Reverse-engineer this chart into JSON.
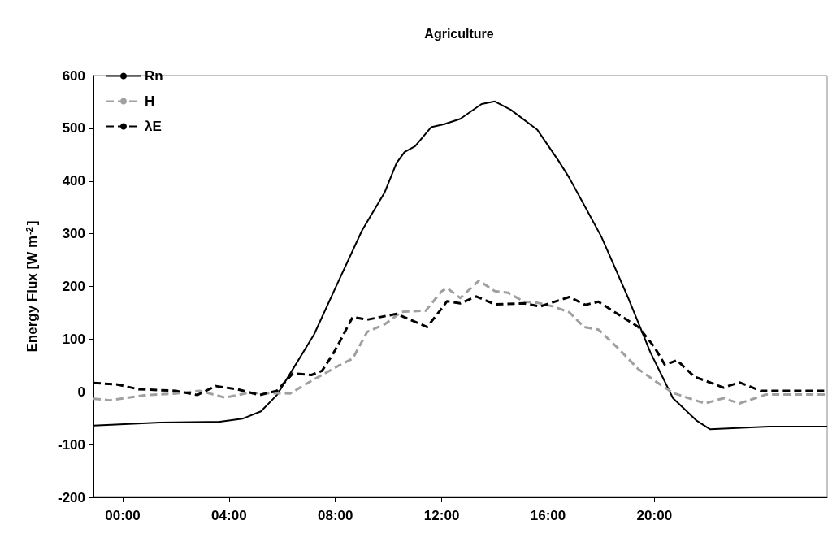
{
  "chart_data": {
    "type": "line",
    "title": "Agriculture",
    "ylabel": "Energy Flux [W m$^{-2}$]",
    "xlim": [
      -1.1,
      26.5
    ],
    "xticks": [
      {
        "value": 0,
        "label": "00:00"
      },
      {
        "value": 4,
        "label": "04:00"
      },
      {
        "value": 8,
        "label": "08:00"
      },
      {
        "value": 12,
        "label": "12:00"
      },
      {
        "value": 16,
        "label": "16:00"
      },
      {
        "value": 20,
        "label": "20:00"
      }
    ],
    "ylim": [
      -200,
      600
    ],
    "yticks": [
      -200,
      -100,
      0,
      100,
      200,
      300,
      400,
      500,
      600
    ],
    "grid": false,
    "legend": "top left",
    "marker": "none",
    "series": [
      {
        "name": "Rn",
        "color": "#000000",
        "line_style": "solid",
        "x": [
          -1.1,
          1.4,
          3.6,
          4.5,
          5.2,
          5.8,
          6.4,
          7.2,
          8.0,
          9.0,
          9.85,
          10.3,
          10.6,
          11.0,
          11.6,
          12.1,
          12.7,
          13.5,
          14.0,
          14.6,
          15.6,
          16.4,
          16.8,
          18.0,
          19.0,
          19.85,
          20.7,
          21.6,
          22.1,
          24.3,
          26.5
        ],
        "values": [
          -64,
          -58,
          -57,
          -51,
          -37,
          -6,
          43,
          109,
          197,
          306,
          378,
          434,
          455,
          466,
          502,
          508,
          518,
          546,
          551,
          535,
          497,
          438,
          406,
          295,
          180,
          75,
          -12,
          -55,
          -71,
          -66,
          -66
        ]
      },
      {
        "name": "H",
        "color": "#a0a0a0",
        "line_style": "dashed",
        "x": [
          -1.1,
          -0.5,
          0.9,
          2.0,
          2.9,
          3.85,
          4.7,
          6.3,
          7.1,
          8.1,
          8.65,
          9.2,
          9.85,
          10.5,
          11.4,
          12.0,
          12.2,
          12.7,
          13.4,
          14.0,
          14.5,
          15.1,
          15.6,
          16.2,
          16.8,
          17.35,
          17.9,
          18.65,
          19.4,
          20.1,
          20.7,
          21.9,
          22.6,
          23.2,
          24.2,
          26.5
        ],
        "values": [
          -13,
          -16,
          -6,
          -3,
          2,
          -11,
          -2,
          -3,
          21,
          49,
          63,
          114,
          128,
          152,
          154,
          191,
          197,
          178,
          211,
          191,
          188,
          171,
          169,
          162,
          151,
          123,
          118,
          82,
          43,
          18,
          -2,
          -22,
          -12,
          -22,
          -5,
          -5
        ]
      },
      {
        "name": "λE",
        "color": "#000000",
        "line_style": "dashed",
        "x": [
          -1.1,
          -0.2,
          0.6,
          2.0,
          2.8,
          3.5,
          4.3,
          5.15,
          5.8,
          6.4,
          7.1,
          7.5,
          7.9,
          8.1,
          8.65,
          9.2,
          10.3,
          11.45,
          11.95,
          12.2,
          12.7,
          13.3,
          14.0,
          15.1,
          15.7,
          16.8,
          17.4,
          17.9,
          18.55,
          19.4,
          20.0,
          20.4,
          20.85,
          21.5,
          22.6,
          23.2,
          24.0,
          26.5
        ],
        "values": [
          17,
          14,
          5,
          2,
          -6,
          11,
          5,
          -6,
          2,
          35,
          32,
          40,
          71,
          89,
          142,
          137,
          148,
          123,
          155,
          172,
          168,
          181,
          166,
          168,
          162,
          180,
          165,
          171,
          150,
          123,
          85,
          51,
          60,
          29,
          8,
          18,
          2,
          2
        ]
      }
    ]
  }
}
